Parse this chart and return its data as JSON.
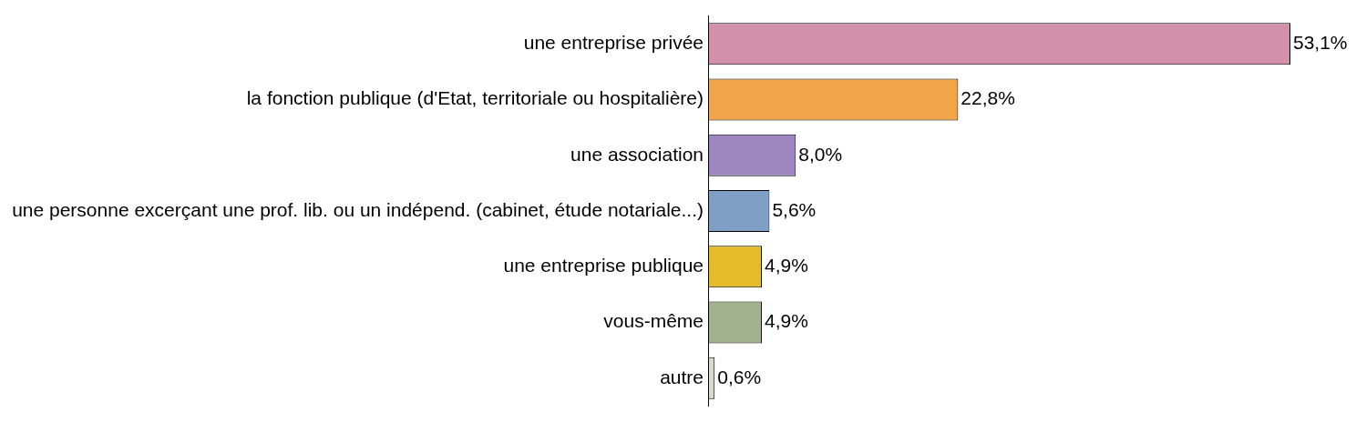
{
  "chart_data": {
    "type": "bar",
    "orientation": "horizontal",
    "categories": [
      "une entreprise privée",
      "la fonction publique (d'Etat, territoriale ou hospitalière)",
      "une association",
      "une personne excerçant une prof. lib. ou un indépend. (cabinet, étude notariale...)",
      "une entreprise publique",
      "vous-même",
      "autre"
    ],
    "values": [
      53.1,
      22.8,
      8.0,
      5.6,
      4.9,
      4.9,
      0.6
    ],
    "colors": [
      "#d291a8",
      "#f2a449",
      "#9e86c0",
      "#7f9fc4",
      "#e5bb2c",
      "#a2b28e",
      "#d6dcc8"
    ],
    "value_labels": [
      "53,1%",
      "22,8%",
      "8,0%",
      "5,6%",
      "4,9%",
      "4,9%",
      "0,6%"
    ],
    "legend": false
  }
}
